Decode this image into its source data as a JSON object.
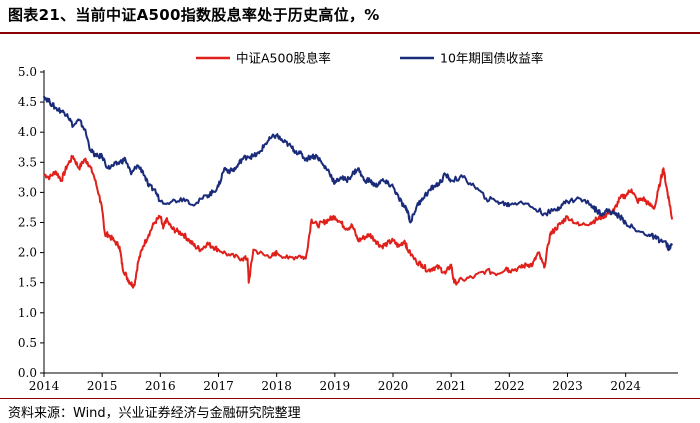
{
  "title": "图表21、当前中证A500指数股息率处于历史高位，%",
  "source": "资料来源：Wind，兴业证券经济与金融研究院整理",
  "chart_data": {
    "type": "line",
    "title": "图表21、当前中证A500指数股息率处于历史高位，%",
    "xlabel": "",
    "ylabel": "",
    "xlim": [
      2014.0,
      2024.9
    ],
    "ylim": [
      0.0,
      5.0
    ],
    "xticks": [
      "2014",
      "2015",
      "2016",
      "2017",
      "2018",
      "2019",
      "2020",
      "2021",
      "2022",
      "2023",
      "2024"
    ],
    "yticks": [
      "0.0",
      "0.5",
      "1.0",
      "1.5",
      "2.0",
      "2.5",
      "3.0",
      "3.5",
      "4.0",
      "4.5",
      "5.0"
    ],
    "legend_position": "top-right",
    "series": [
      {
        "name": "中证A500股息率",
        "color": "#e0201b",
        "x": [
          2014.0,
          2014.1,
          2014.2,
          2014.3,
          2014.4,
          2014.5,
          2014.6,
          2014.7,
          2014.75,
          2014.85,
          2014.95,
          2015.0,
          2015.05,
          2015.1,
          2015.2,
          2015.3,
          2015.35,
          2015.42,
          2015.48,
          2015.55,
          2015.62,
          2015.7,
          2015.8,
          2015.9,
          2016.0,
          2016.05,
          2016.1,
          2016.2,
          2016.3,
          2016.4,
          2016.5,
          2016.6,
          2016.7,
          2016.8,
          2016.9,
          2017.0,
          2017.2,
          2017.4,
          2017.5,
          2017.52,
          2017.6,
          2017.8,
          2017.95,
          2018.0,
          2018.2,
          2018.4,
          2018.5,
          2018.6,
          2018.7,
          2018.8,
          2018.9,
          2019.0,
          2019.1,
          2019.2,
          2019.3,
          2019.4,
          2019.5,
          2019.6,
          2019.7,
          2019.8,
          2019.9,
          2020.0,
          2020.1,
          2020.2,
          2020.25,
          2020.4,
          2020.5,
          2020.6,
          2020.7,
          2020.8,
          2020.9,
          2021.0,
          2021.05,
          2021.2,
          2021.4,
          2021.6,
          2021.8,
          2021.95,
          2022.0,
          2022.2,
          2022.3,
          2022.4,
          2022.5,
          2022.6,
          2022.7,
          2022.8,
          2022.9,
          2023.0,
          2023.2,
          2023.4,
          2023.5,
          2023.6,
          2023.7,
          2023.8,
          2023.9,
          2024.0,
          2024.1,
          2024.2,
          2024.3,
          2024.4,
          2024.5,
          2024.6,
          2024.65,
          2024.7,
          2024.75,
          2024.8
        ],
        "values": [
          3.3,
          3.25,
          3.35,
          3.2,
          3.45,
          3.6,
          3.4,
          3.55,
          3.5,
          3.3,
          2.95,
          2.7,
          2.3,
          2.3,
          2.2,
          2.1,
          1.75,
          1.6,
          1.5,
          1.45,
          1.85,
          2.1,
          2.3,
          2.5,
          2.6,
          2.4,
          2.55,
          2.4,
          2.35,
          2.3,
          2.2,
          2.1,
          2.05,
          2.15,
          2.1,
          2.05,
          1.95,
          1.9,
          1.9,
          1.5,
          2.05,
          1.95,
          1.95,
          2.0,
          1.9,
          1.95,
          1.9,
          2.55,
          2.45,
          2.5,
          2.55,
          2.6,
          2.5,
          2.4,
          2.45,
          2.2,
          2.25,
          2.3,
          2.2,
          2.1,
          2.15,
          2.2,
          2.1,
          2.2,
          2.05,
          1.85,
          1.8,
          1.7,
          1.75,
          1.75,
          1.65,
          1.8,
          1.5,
          1.55,
          1.6,
          1.7,
          1.65,
          1.75,
          1.7,
          1.75,
          1.8,
          1.8,
          2.0,
          1.75,
          2.3,
          2.4,
          2.5,
          2.6,
          2.45,
          2.5,
          2.55,
          2.6,
          2.65,
          2.7,
          2.9,
          2.95,
          3.05,
          2.85,
          2.9,
          2.8,
          2.75,
          3.2,
          3.4,
          3.1,
          2.85,
          2.55
        ]
      },
      {
        "name": "10年期国债收益率",
        "color": "#1a2b7a",
        "x": [
          2014.0,
          2014.1,
          2014.2,
          2014.3,
          2014.4,
          2014.5,
          2014.6,
          2014.7,
          2014.8,
          2014.9,
          2015.0,
          2015.1,
          2015.2,
          2015.3,
          2015.4,
          2015.5,
          2015.6,
          2015.7,
          2015.8,
          2015.9,
          2016.0,
          2016.2,
          2016.4,
          2016.6,
          2016.8,
          2016.9,
          2017.0,
          2017.1,
          2017.2,
          2017.3,
          2017.4,
          2017.5,
          2017.6,
          2017.7,
          2017.8,
          2017.9,
          2018.0,
          2018.1,
          2018.2,
          2018.3,
          2018.4,
          2018.5,
          2018.6,
          2018.7,
          2018.8,
          2018.9,
          2019.0,
          2019.1,
          2019.2,
          2019.3,
          2019.4,
          2019.5,
          2019.6,
          2019.7,
          2019.8,
          2019.9,
          2020.0,
          2020.1,
          2020.2,
          2020.25,
          2020.3,
          2020.4,
          2020.5,
          2020.6,
          2020.7,
          2020.8,
          2020.9,
          2021.0,
          2021.2,
          2021.4,
          2021.6,
          2021.8,
          2021.95,
          2022.0,
          2022.2,
          2022.4,
          2022.6,
          2022.8,
          2022.9,
          2023.0,
          2023.2,
          2023.4,
          2023.5,
          2023.6,
          2023.7,
          2023.8,
          2023.9,
          2024.0,
          2024.2,
          2024.4,
          2024.5,
          2024.6,
          2024.7,
          2024.75,
          2024.8
        ],
        "values": [
          4.6,
          4.5,
          4.4,
          4.35,
          4.3,
          4.1,
          4.2,
          4.05,
          3.7,
          3.6,
          3.6,
          3.4,
          3.45,
          3.5,
          3.55,
          3.3,
          3.45,
          3.35,
          3.1,
          3.05,
          2.85,
          2.85,
          2.9,
          2.8,
          2.95,
          3.0,
          3.1,
          3.4,
          3.35,
          3.4,
          3.55,
          3.6,
          3.6,
          3.65,
          3.8,
          3.9,
          3.95,
          3.85,
          3.8,
          3.7,
          3.65,
          3.55,
          3.6,
          3.6,
          3.45,
          3.35,
          3.15,
          3.25,
          3.2,
          3.3,
          3.4,
          3.2,
          3.2,
          3.1,
          3.2,
          3.15,
          3.1,
          2.9,
          2.75,
          2.7,
          2.5,
          2.75,
          2.9,
          3.0,
          3.1,
          3.15,
          3.3,
          3.2,
          3.25,
          3.1,
          2.9,
          2.85,
          2.8,
          2.8,
          2.85,
          2.75,
          2.65,
          2.7,
          2.8,
          2.85,
          2.9,
          2.8,
          2.7,
          2.65,
          2.7,
          2.65,
          2.6,
          2.5,
          2.35,
          2.3,
          2.25,
          2.2,
          2.15,
          2.05,
          2.15
        ]
      }
    ]
  }
}
